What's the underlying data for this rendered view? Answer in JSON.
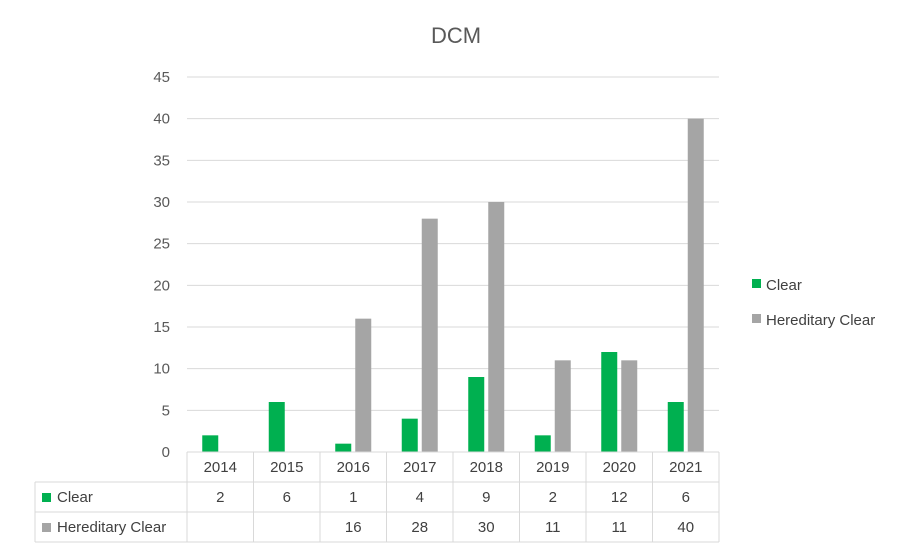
{
  "chart_data": {
    "type": "bar",
    "title": "DCM",
    "xlabel": "",
    "ylabel": "",
    "ylim": [
      0,
      45
    ],
    "yticks": [
      0,
      5,
      10,
      15,
      20,
      25,
      30,
      35,
      40,
      45
    ],
    "grid": true,
    "legend": "right",
    "categories": [
      "2014",
      "2015",
      "2016",
      "2017",
      "2018",
      "2019",
      "2020",
      "2021"
    ],
    "series": [
      {
        "name": "Clear",
        "color": "#00b050",
        "values": [
          2,
          6,
          1,
          4,
          9,
          2,
          12,
          6
        ]
      },
      {
        "name": "Hereditary Clear",
        "color": "#a5a5a5",
        "values": [
          null,
          null,
          16,
          28,
          30,
          11,
          11,
          40
        ]
      }
    ]
  }
}
